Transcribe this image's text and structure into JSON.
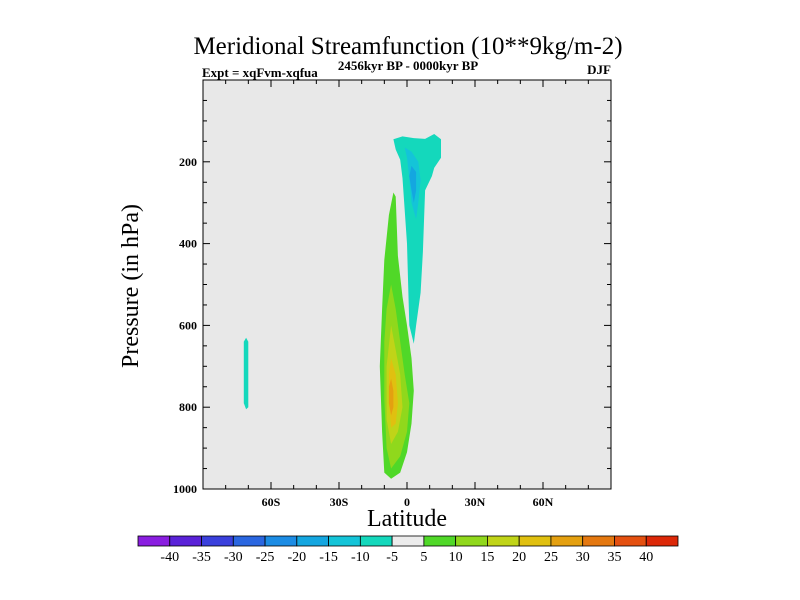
{
  "chart_data": {
    "type": "heatmap",
    "title": "Meridional Streamfunction (10**9kg/m-2)",
    "subtitle_left": "Expt = xqFvm-xqfua",
    "subtitle_center": "2456kyr BP - 0000kyr BP",
    "subtitle_right": "DJF",
    "xlabel": "Latitude",
    "ylabel": "Pressure (in hPa)",
    "xlim": [
      -90,
      90
    ],
    "ylim": [
      0,
      1000
    ],
    "y_reversed": true,
    "x_ticks": [
      {
        "value": -60,
        "label": "60S"
      },
      {
        "value": -30,
        "label": "30S"
      },
      {
        "value": 0,
        "label": "0"
      },
      {
        "value": 30,
        "label": "30N"
      },
      {
        "value": 60,
        "label": "60N"
      }
    ],
    "y_ticks": [
      {
        "value": 200,
        "label": "200"
      },
      {
        "value": 400,
        "label": "400"
      },
      {
        "value": 600,
        "label": "600"
      },
      {
        "value": 800,
        "label": "800"
      },
      {
        "value": 1000,
        "label": "1000"
      }
    ],
    "background_color": "#e8e8e8",
    "colorbar": {
      "labels": [
        "-40",
        "-35",
        "-30",
        "-25",
        "-20",
        "-15",
        "-10",
        "-5",
        "5",
        "10",
        "15",
        "20",
        "25",
        "30",
        "35",
        "40"
      ],
      "colors": [
        "#8a1ee0",
        "#5a22d8",
        "#3a40dc",
        "#2a66e0",
        "#1c8ce4",
        "#14a6e0",
        "#14c4d8",
        "#14d8bc",
        "#ececec",
        "#50d828",
        "#90d81c",
        "#c0d418",
        "#e0c010",
        "#e4a010",
        "#e47810",
        "#e45010",
        "#dc2808"
      ]
    },
    "regions": [
      {
        "name": "negative-plume-sh",
        "level": "-5",
        "color": "#14d8bc",
        "points": [
          [
            -71,
            630
          ],
          [
            -70,
            640
          ],
          [
            -70,
            800
          ],
          [
            -71,
            805
          ],
          [
            -72,
            790
          ],
          [
            -72,
            640
          ]
        ]
      },
      {
        "name": "negative-cell-outer",
        "level": "-5",
        "color": "#14d8bc",
        "points": [
          [
            -6,
            145
          ],
          [
            -2,
            138
          ],
          [
            3,
            142
          ],
          [
            8,
            144
          ],
          [
            12,
            132
          ],
          [
            15,
            145
          ],
          [
            15,
            190
          ],
          [
            12,
            215
          ],
          [
            11,
            235
          ],
          [
            8,
            270
          ],
          [
            7,
            420
          ],
          [
            6,
            520
          ],
          [
            4,
            600
          ],
          [
            3,
            645
          ],
          [
            1,
            600
          ],
          [
            0,
            400
          ],
          [
            -2,
            240
          ],
          [
            -3,
            195
          ],
          [
            -5,
            170
          ]
        ]
      },
      {
        "name": "negative-cell-inner",
        "level": "-10",
        "color": "#14c4d8",
        "points": [
          [
            -1,
            165
          ],
          [
            2,
            175
          ],
          [
            5,
            200
          ],
          [
            6,
            245
          ],
          [
            5,
            300
          ],
          [
            4,
            340
          ],
          [
            2,
            300
          ],
          [
            1,
            240
          ],
          [
            0,
            190
          ]
        ]
      },
      {
        "name": "negative-cell-core",
        "level": "-15",
        "color": "#14a6e0",
        "points": [
          [
            2,
            210
          ],
          [
            4,
            225
          ],
          [
            4,
            270
          ],
          [
            3,
            300
          ],
          [
            2,
            270
          ],
          [
            1,
            235
          ]
        ]
      },
      {
        "name": "positive-cell-outer",
        "level": "5",
        "color": "#50d828",
        "points": [
          [
            -6,
            275
          ],
          [
            -5,
            285
          ],
          [
            -4,
            430
          ],
          [
            -2,
            530
          ],
          [
            0,
            600
          ],
          [
            2,
            680
          ],
          [
            3,
            760
          ],
          [
            2,
            840
          ],
          [
            0,
            910
          ],
          [
            -3,
            960
          ],
          [
            -7,
            975
          ],
          [
            -10,
            960
          ],
          [
            -11,
            860
          ],
          [
            -12,
            700
          ],
          [
            -11,
            560
          ],
          [
            -10,
            440
          ],
          [
            -8,
            330
          ]
        ]
      },
      {
        "name": "positive-cell-10",
        "level": "10",
        "color": "#90d81c",
        "points": [
          [
            -7,
            500
          ],
          [
            -5,
            560
          ],
          [
            -3,
            640
          ],
          [
            -1,
            720
          ],
          [
            1,
            790
          ],
          [
            0,
            860
          ],
          [
            -3,
            920
          ],
          [
            -7,
            950
          ],
          [
            -9,
            900
          ],
          [
            -10,
            780
          ],
          [
            -10,
            640
          ],
          [
            -9,
            560
          ]
        ]
      },
      {
        "name": "positive-cell-15",
        "level": "15",
        "color": "#c0d418",
        "points": [
          [
            -7,
            600
          ],
          [
            -5,
            660
          ],
          [
            -3,
            720
          ],
          [
            -2,
            800
          ],
          [
            -4,
            860
          ],
          [
            -7,
            890
          ],
          [
            -9,
            830
          ],
          [
            -9,
            700
          ]
        ]
      },
      {
        "name": "positive-cell-20",
        "level": "20",
        "color": "#e0c010",
        "points": [
          [
            -7,
            680
          ],
          [
            -5,
            720
          ],
          [
            -4,
            790
          ],
          [
            -5,
            840
          ],
          [
            -7,
            850
          ],
          [
            -8,
            790
          ],
          [
            -8,
            720
          ]
        ]
      },
      {
        "name": "positive-cell-core",
        "level": "25",
        "color": "#e4a010",
        "points": [
          [
            -7,
            730
          ],
          [
            -6,
            760
          ],
          [
            -6,
            800
          ],
          [
            -7,
            820
          ],
          [
            -8,
            790
          ],
          [
            -8,
            750
          ]
        ]
      }
    ]
  }
}
